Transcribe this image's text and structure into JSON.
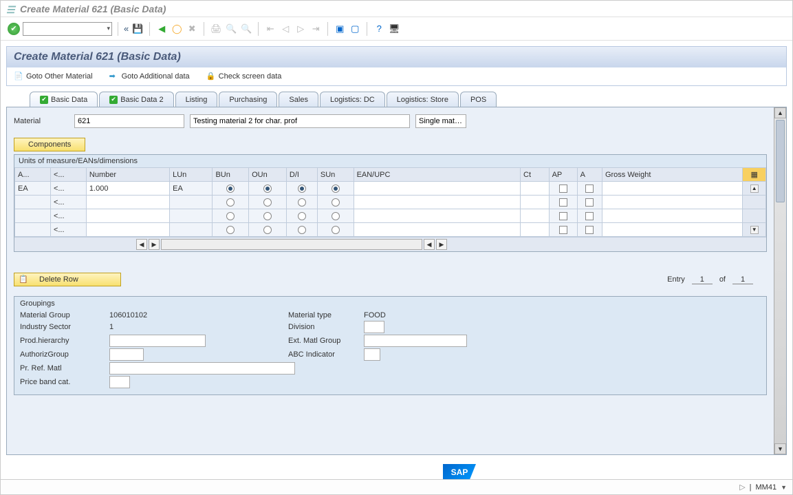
{
  "window": {
    "title": "Create Material 621 (Basic Data)"
  },
  "header": {
    "title": "Create Material 621 (Basic Data)",
    "links": {
      "other_material": "Goto Other Material",
      "additional_data": "Goto Additional data",
      "check_screen": "Check screen data"
    }
  },
  "tabs": [
    {
      "label": "Basic Data",
      "check": true,
      "active": true
    },
    {
      "label": "Basic Data 2",
      "check": true,
      "active": false
    },
    {
      "label": "Listing",
      "check": false,
      "active": false
    },
    {
      "label": "Purchasing",
      "check": false,
      "active": false
    },
    {
      "label": "Sales",
      "check": false,
      "active": false
    },
    {
      "label": "Logistics: DC",
      "check": false,
      "active": false
    },
    {
      "label": "Logistics: Store",
      "check": false,
      "active": false
    },
    {
      "label": "POS",
      "check": false,
      "active": false
    }
  ],
  "material": {
    "label": "Material",
    "number": "621",
    "description": "Testing material 2 for char. prof",
    "category": "Single mate…"
  },
  "buttons": {
    "components": "Components",
    "delete_row": "Delete Row"
  },
  "units_group": {
    "title": "Units of measure/EANs/dimensions",
    "columns": [
      "A...",
      "<...",
      "Number",
      "LUn",
      "BUn",
      "OUn",
      "D/I",
      "SUn",
      "EAN/UPC",
      "Ct",
      "AP",
      "A",
      "Gross Weight"
    ],
    "rows": [
      {
        "a": "EA",
        "dots": "<...",
        "number": "1.000",
        "lun": "EA",
        "bun": true,
        "oun": true,
        "di": true,
        "sun": true,
        "ean": "",
        "ct": "",
        "ap": false,
        "ac": false,
        "gross": ""
      },
      {
        "a": "",
        "dots": "<...",
        "number": "",
        "lun": "",
        "bun": false,
        "oun": false,
        "di": false,
        "sun": false,
        "ean": "",
        "ct": "",
        "ap": false,
        "ac": false,
        "gross": ""
      },
      {
        "a": "",
        "dots": "<...",
        "number": "",
        "lun": "",
        "bun": false,
        "oun": false,
        "di": false,
        "sun": false,
        "ean": "",
        "ct": "",
        "ap": false,
        "ac": false,
        "gross": ""
      },
      {
        "a": "",
        "dots": "<...",
        "number": "",
        "lun": "",
        "bun": false,
        "oun": false,
        "di": false,
        "sun": false,
        "ean": "",
        "ct": "",
        "ap": false,
        "ac": false,
        "gross": ""
      }
    ]
  },
  "entry": {
    "label": "Entry",
    "current": "1",
    "of": "of",
    "total": "1"
  },
  "groupings": {
    "title": "Groupings",
    "material_group": {
      "label": "Material Group",
      "value": "106010102"
    },
    "material_type": {
      "label": "Material type",
      "value": "FOOD"
    },
    "industry_sector": {
      "label": "Industry Sector",
      "value": "1"
    },
    "division": {
      "label": "Division",
      "value": ""
    },
    "prod_hierarchy": {
      "label": "Prod.hierarchy",
      "value": ""
    },
    "ext_matl_group": {
      "label": "Ext. Matl Group",
      "value": ""
    },
    "authoriz_group": {
      "label": "AuthorizGroup",
      "value": ""
    },
    "abc_indicator": {
      "label": "ABC Indicator",
      "value": ""
    },
    "pr_ref_matl": {
      "label": "Pr. Ref. Matl",
      "value": ""
    },
    "price_band": {
      "label": "Price band cat.",
      "value": ""
    }
  },
  "footer": {
    "tcode": "MM41"
  },
  "colors": {
    "panel_blue": "#dce8f4",
    "header_grad_top": "#e8eef8",
    "header_grad_bot": "#c8d6ec",
    "yellow_top": "#fff4c0",
    "yellow_bot": "#f8e070",
    "border": "#9ab"
  }
}
